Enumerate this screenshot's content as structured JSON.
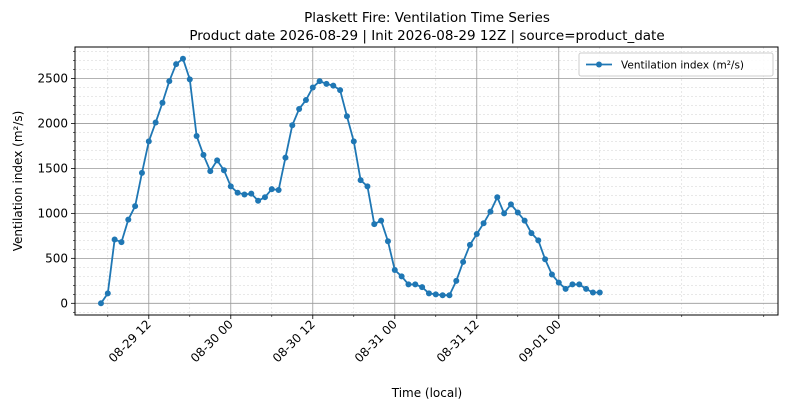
{
  "chart_data": {
    "type": "line",
    "title": "Plaskett Fire: Ventilation Time Series",
    "subtitle": "Product date 2026-08-29 | Init 2026-08-29 12Z | source=product_date",
    "xlabel": "Time (local)",
    "ylabel": "Ventilation index (m²/s)",
    "xlim": [
      "2026-08-29 01:12",
      "2026-09-02 08:05"
    ],
    "ylim": [
      -130,
      2850
    ],
    "x_ticks": [
      {
        "t": "2026-08-29 12:00",
        "label": "08-29 12"
      },
      {
        "t": "2026-08-30 00:00",
        "label": "08-30 00"
      },
      {
        "t": "2026-08-30 12:00",
        "label": "08-30 12"
      },
      {
        "t": "2026-08-31 00:00",
        "label": "08-31 00"
      },
      {
        "t": "2026-08-31 12:00",
        "label": "08-31 12"
      },
      {
        "t": "2026-09-01 00:00",
        "label": "09-01 00"
      }
    ],
    "y_ticks": [
      0,
      500,
      1000,
      1500,
      2000,
      2500
    ],
    "grid": true,
    "legend": "top-right",
    "series": [
      {
        "name": "Ventilation index (m²/s)",
        "color": "#1f77b4",
        "marker": "circle",
        "x": [
          "2026-08-29 05:00",
          "2026-08-29 06:00",
          "2026-08-29 07:00",
          "2026-08-29 08:00",
          "2026-08-29 09:00",
          "2026-08-29 10:00",
          "2026-08-29 11:00",
          "2026-08-29 12:00",
          "2026-08-29 13:00",
          "2026-08-29 14:00",
          "2026-08-29 15:00",
          "2026-08-29 16:00",
          "2026-08-29 17:00",
          "2026-08-29 18:00",
          "2026-08-29 19:00",
          "2026-08-29 20:00",
          "2026-08-29 21:00",
          "2026-08-29 22:00",
          "2026-08-29 23:00",
          "2026-08-30 00:00",
          "2026-08-30 01:00",
          "2026-08-30 02:00",
          "2026-08-30 03:00",
          "2026-08-30 04:00",
          "2026-08-30 05:00",
          "2026-08-30 06:00",
          "2026-08-30 07:00",
          "2026-08-30 08:00",
          "2026-08-30 09:00",
          "2026-08-30 10:00",
          "2026-08-30 11:00",
          "2026-08-30 12:00",
          "2026-08-30 13:00",
          "2026-08-30 14:00",
          "2026-08-30 15:00",
          "2026-08-30 16:00",
          "2026-08-30 17:00",
          "2026-08-30 18:00",
          "2026-08-30 19:00",
          "2026-08-30 20:00",
          "2026-08-30 21:00",
          "2026-08-30 22:00",
          "2026-08-30 23:00",
          "2026-08-31 00:00",
          "2026-08-31 01:00",
          "2026-08-31 02:00",
          "2026-08-31 03:00",
          "2026-08-31 04:00",
          "2026-08-31 05:00",
          "2026-08-31 06:00",
          "2026-08-31 07:00",
          "2026-08-31 08:00",
          "2026-08-31 09:00",
          "2026-08-31 10:00",
          "2026-08-31 11:00",
          "2026-08-31 12:00",
          "2026-08-31 13:00",
          "2026-08-31 14:00",
          "2026-08-31 15:00",
          "2026-08-31 16:00",
          "2026-08-31 17:00",
          "2026-08-31 18:00",
          "2026-08-31 19:00",
          "2026-08-31 20:00",
          "2026-08-31 21:00",
          "2026-08-31 22:00",
          "2026-08-31 23:00",
          "2026-09-01 00:00",
          "2026-09-01 01:00",
          "2026-09-01 02:00",
          "2026-09-01 03:00",
          "2026-09-01 04:00",
          "2026-09-01 05:00",
          "2026-09-01 06:00"
        ],
        "values": [
          0,
          110,
          710,
          680,
          930,
          1080,
          1450,
          1800,
          2010,
          2230,
          2470,
          2660,
          2720,
          2490,
          1860,
          1650,
          1470,
          1590,
          1480,
          1300,
          1230,
          1210,
          1220,
          1140,
          1180,
          1270,
          1260,
          1620,
          1980,
          2160,
          2260,
          2400,
          2470,
          2440,
          2420,
          2370,
          2080,
          1800,
          1370,
          1300,
          880,
          920,
          690,
          370,
          300,
          210,
          210,
          180,
          110,
          100,
          90,
          90,
          250,
          460,
          650,
          770,
          890,
          1020,
          1180,
          1000,
          1100,
          1010,
          920,
          780,
          700,
          490,
          320,
          230,
          160,
          210,
          210,
          160,
          120,
          120
        ]
      }
    ]
  }
}
